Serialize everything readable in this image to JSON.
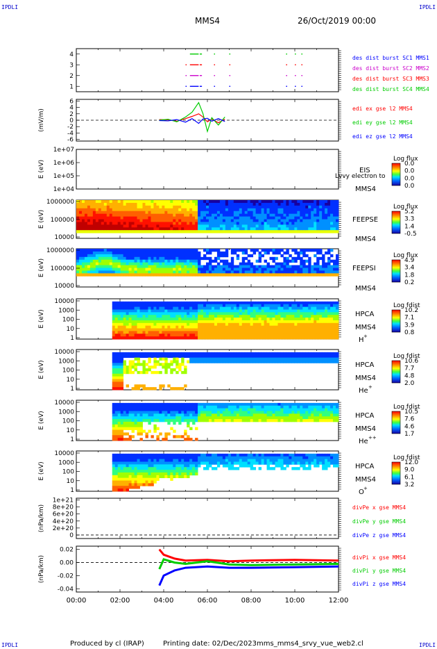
{
  "corner_label": "IPDLI",
  "title": "MMS4",
  "date": "26/Oct/2019 00:00",
  "footer": {
    "produced_by": "Produced by cl (IRAP)",
    "printing_date": "Printing date: 02/Dec/2023",
    "script": "mms_mms4_srvy_vue_web2.cl"
  },
  "colors": {
    "mms1": "#0000ff",
    "mms2": "#cc00cc",
    "mms3": "#ff0000",
    "mms4": "#00cc00",
    "x": "#ff0000",
    "y": "#00cc00",
    "z": "#0000ff"
  },
  "chart_data": [
    {
      "id": "burst",
      "type": "scatter",
      "ylim": [
        0.5,
        4.5
      ],
      "yticks": [
        "4",
        "3",
        "2",
        "1"
      ],
      "legend": [
        "des dist burst SC1 MMS1",
        "des dist burst SC2 MMS2",
        "des dist burst SC3 MMS3",
        "des dist burst SC4 MMS4"
      ],
      "series": [
        {
          "name": "des dist burst SC1 MMS1",
          "y": 1,
          "intervals": [
            [
              5.0,
              5.05
            ],
            [
              5.2,
              5.6
            ],
            [
              5.65,
              5.75
            ],
            [
              6.3,
              6.35
            ],
            [
              7.0,
              7.05
            ],
            [
              9.6,
              9.65
            ],
            [
              10.0,
              10.05
            ],
            [
              10.3,
              10.35
            ]
          ]
        },
        {
          "name": "des dist burst SC2 MMS2",
          "y": 2,
          "intervals": [
            [
              5.0,
              5.05
            ],
            [
              5.2,
              5.6
            ],
            [
              5.65,
              5.75
            ],
            [
              6.3,
              6.35
            ],
            [
              7.0,
              7.05
            ],
            [
              9.6,
              9.65
            ],
            [
              10.0,
              10.05
            ],
            [
              10.3,
              10.35
            ]
          ]
        },
        {
          "name": "des dist burst SC3 MMS3",
          "y": 3,
          "intervals": [
            [
              5.0,
              5.05
            ],
            [
              5.2,
              5.6
            ],
            [
              5.65,
              5.75
            ],
            [
              6.3,
              6.35
            ],
            [
              7.0,
              7.05
            ],
            [
              9.6,
              9.65
            ],
            [
              10.0,
              10.05
            ],
            [
              10.3,
              10.35
            ]
          ]
        },
        {
          "name": "des dist burst SC4 MMS4",
          "y": 4,
          "intervals": [
            [
              5.2,
              5.6
            ],
            [
              5.65,
              5.75
            ],
            [
              6.3,
              6.35
            ],
            [
              7.0,
              7.05
            ],
            [
              9.6,
              9.65
            ],
            [
              10.0,
              10.05
            ],
            [
              10.3,
              10.35
            ]
          ]
        }
      ]
    },
    {
      "id": "edi",
      "type": "line",
      "ylabel": "(mV/m)",
      "ylim": [
        -6.5,
        6.5
      ],
      "yticks": [
        "6",
        "4",
        "2",
        "0",
        "-2",
        "-4",
        "-6"
      ],
      "legend": [
        "edi ex gse l2 MMS4",
        "edi ey gse l2 MMS4",
        "edi ez gse l2 MMS4"
      ],
      "series": [
        {
          "name": "edi ex gse l2 MMS4",
          "x": [
            3.8,
            4.2,
            4.6,
            5.0,
            5.3,
            5.6,
            5.8,
            6.0,
            6.2,
            6.5,
            6.8
          ],
          "y": [
            0.2,
            0.1,
            -0.3,
            0.5,
            1.2,
            2.0,
            1.0,
            -0.5,
            0.4,
            -0.8,
            0.3
          ]
        },
        {
          "name": "edi ey gse l2 MMS4",
          "x": [
            3.8,
            4.2,
            4.6,
            5.0,
            5.3,
            5.6,
            5.8,
            6.0,
            6.2,
            6.5,
            6.8
          ],
          "y": [
            0.0,
            0.3,
            -0.5,
            1.0,
            2.5,
            5.5,
            2.0,
            -3.5,
            0.8,
            -1.5,
            1.0
          ]
        },
        {
          "name": "edi ez gse l2 MMS4",
          "x": [
            3.8,
            4.2,
            4.6,
            5.0,
            5.3,
            5.6,
            5.8,
            6.0,
            6.2,
            6.5,
            6.8
          ],
          "y": [
            -0.1,
            -0.2,
            0.2,
            -0.6,
            0.5,
            -1.0,
            0.4,
            0.6,
            -0.3,
            0.5,
            -0.4
          ]
        }
      ]
    },
    {
      "id": "eis",
      "type": "heatmap",
      "ylabel": "E (eV)",
      "yticks": [
        "1e+07",
        "1e+06",
        "1e+05",
        "1e+04"
      ],
      "instrument": "EIS",
      "species": "MMS4",
      "note": "Lvvy electron to",
      "colorbar_title": "Log flux",
      "colorbar_ticks": [
        "0.0",
        "0.0",
        "0.0",
        "0.0"
      ]
    },
    {
      "id": "feepse",
      "type": "heatmap",
      "ylabel": "E (eV)",
      "yticks": [
        "1000000",
        "100000",
        "10000"
      ],
      "instrument": "FEEPSE",
      "species": "MMS4",
      "colorbar_title": "Log flux",
      "colorbar_ticks": [
        "5.2",
        "3.3",
        "1.4",
        "-0.5"
      ]
    },
    {
      "id": "feepsi",
      "type": "heatmap",
      "ylabel": "E (eV)",
      "yticks": [
        "1000000",
        "100000",
        "10000"
      ],
      "instrument": "FEEPSI",
      "species": "MMS4",
      "colorbar_title": "Log flux",
      "colorbar_ticks": [
        "4.9",
        "3.4",
        "1.8",
        "0.2"
      ]
    },
    {
      "id": "hpca_h",
      "type": "heatmap",
      "ylabel": "E (eV)",
      "yticks": [
        "10000",
        "1000",
        "100",
        "10",
        "1"
      ],
      "instrument": "HPCA",
      "spacecraft": "MMS4",
      "species": "H",
      "charge": "+",
      "colorbar_title": "Log fdist",
      "colorbar_ticks": [
        "10.2",
        "7.1",
        "3.9",
        "0.8"
      ]
    },
    {
      "id": "hpca_he",
      "type": "heatmap",
      "ylabel": "E (eV)",
      "yticks": [
        "10000",
        "1000",
        "100",
        "10",
        "1"
      ],
      "instrument": "HPCA",
      "spacecraft": "MMS4",
      "species": "He",
      "charge": "+",
      "colorbar_title": "Log fdist",
      "colorbar_ticks": [
        "10.6",
        "7.7",
        "4.8",
        "2.0"
      ]
    },
    {
      "id": "hpca_hepp",
      "type": "heatmap",
      "ylabel": "E (eV)",
      "yticks": [
        "10000",
        "1000",
        "100",
        "10",
        "1"
      ],
      "instrument": "HPCA",
      "spacecraft": "MMS4",
      "species": "He",
      "charge": "++",
      "colorbar_title": "Log fdist",
      "colorbar_ticks": [
        "10.5",
        "7.6",
        "4.6",
        "1.7"
      ]
    },
    {
      "id": "hpca_o",
      "type": "heatmap",
      "ylabel": "E (eV)",
      "yticks": [
        "10000",
        "1000",
        "100",
        "10",
        "1"
      ],
      "instrument": "HPCA",
      "spacecraft": "MMS4",
      "species": "O",
      "charge": "+",
      "colorbar_title": "Log fdist",
      "colorbar_ticks": [
        "12.0",
        "9.0",
        "6.1",
        "3.2"
      ]
    },
    {
      "id": "divpe",
      "type": "line",
      "ylabel": "(nPa/km)",
      "ylim": [
        -1e+20,
        1.05e+21
      ],
      "yticks": [
        "1e+21",
        "8e+20",
        "6e+20",
        "4e+20",
        "2e+20",
        "0"
      ],
      "legend": [
        "divPe x gse MMS4",
        "divPe y gse MMS4",
        "divPe z gse MMS4"
      ]
    },
    {
      "id": "divpi",
      "type": "line",
      "ylabel": "(nPa/km)",
      "ylim": [
        -0.045,
        0.025
      ],
      "yticks": [
        "0.02",
        "0.00",
        "-0.02",
        "-0.04"
      ],
      "legend": [
        "divPi x gse MMS4",
        "divPi y gse MMS4",
        "divPi z gse MMS4"
      ],
      "series": [
        {
          "name": "divPi x gse MMS4",
          "x": [
            3.8,
            4.0,
            4.5,
            5.0,
            6.0,
            7.0,
            8.0,
            10.0,
            12.0
          ],
          "y": [
            0.02,
            0.012,
            0.006,
            0.003,
            0.004,
            0.002,
            0.003,
            0.004,
            0.003
          ]
        },
        {
          "name": "divPi y gse MMS4",
          "x": [
            3.8,
            4.0,
            4.5,
            5.0,
            6.0,
            7.0,
            8.0,
            10.0,
            12.0
          ],
          "y": [
            -0.01,
            0.005,
            0.0,
            -0.002,
            0.002,
            -0.003,
            -0.004,
            -0.003,
            -0.002
          ]
        },
        {
          "name": "divPi z gse MMS4",
          "x": [
            3.8,
            4.0,
            4.5,
            5.0,
            6.0,
            7.0,
            8.0,
            10.0,
            12.0
          ],
          "y": [
            -0.035,
            -0.02,
            -0.012,
            -0.008,
            -0.006,
            -0.008,
            -0.008,
            -0.007,
            -0.006
          ]
        }
      ]
    }
  ],
  "xaxis": {
    "range": [
      0,
      12
    ],
    "ticks": [
      "00:00",
      "02:00",
      "04:00",
      "06:00",
      "08:00",
      "10:00",
      "12:00"
    ]
  }
}
